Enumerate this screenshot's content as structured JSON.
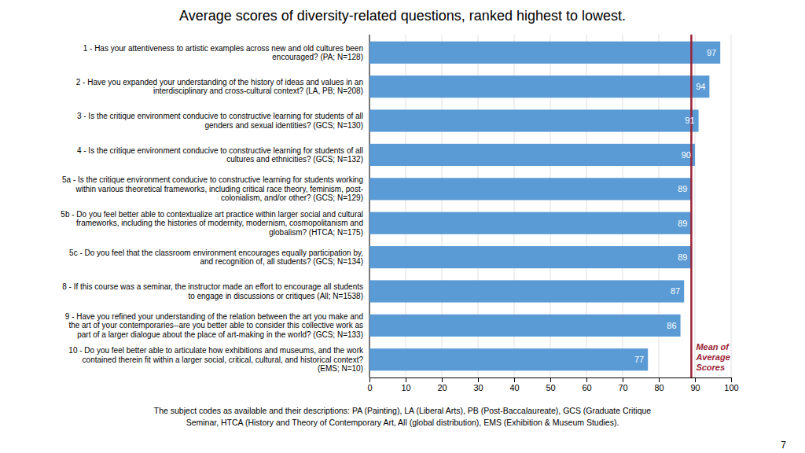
{
  "chart_data": {
    "type": "bar",
    "orientation": "horizontal",
    "title": "Average scores of diversity-related questions, ranked highest  to lowest.",
    "categories": [
      "1 - Has your attentiveness to artistic examples across new and old cultures been\nencouraged? (PA; N=128)",
      "2 - Have you expanded your understanding of the history of ideas and values in an\ninterdisciplinary and cross-cultural context? (LA, PB; N=208)",
      "3 - Is the critique environment conducive to constructive learning for students of all\ngenders and sexual identities? (GCS; N=130)",
      "4 - Is the critique environment conducive to constructive learning for students of all\ncultures and ethnicities? (GCS; N=132)",
      "5a - Is the critique environment conducive to constructive learning for students working\nwithin various theoretical frameworks, including critical race theory, feminism, post-\ncolonialism, and/or other? (GCS; N=129)",
      "5b - Do you feel better able to contextualize art practice within larger social and cultural\nframeworks, including the histories of modernity, modernism, cosmopolitanism and\nglobalism? (HTCA; N=175)",
      "5c - Do you feel that the classroom environment encourages equally participation by,\nand recognition of, all students? (GCS; N=134)",
      "8 - If this course was a seminar, the instructor made an effort to encourage all students\nto engage in discussions or critiques (All; N=1538)",
      "9 - Have you refined your understanding of the relation between the art you make and\nthe art of your contemporaries--are you better able to consider this collective work as\npart of a larger dialogue about the place of art-making in the world? (GCS; N=133)",
      "10 - Do you feel better able to articulate how exhibitions and museums, and the work\ncontained therein fit within a larger social, critical, cultural, and historical context?\n(EMS; N=10)"
    ],
    "values": [
      97,
      94,
      91,
      90,
      89,
      89,
      89,
      87,
      86,
      77
    ],
    "color": "#5b9bd5",
    "data_labels": true,
    "xlim": [
      0,
      100
    ],
    "xticks": [
      0,
      10,
      20,
      30,
      40,
      50,
      60,
      70,
      80,
      90,
      100
    ],
    "grid": true,
    "mean_line": {
      "value": 89,
      "label": "Mean of\nAverage\nScores",
      "color": "#9b2335"
    },
    "footnotes": [
      "The subject codes as available and their descriptions: PA (Painting), LA (Liberal Arts), PB (Post-Baccalaureate), GCS (Graduate Critique",
      "Seminar, HTCA (History and Theory of Contemporary Art, All (global distribution), EMS (Exhibition & Museum Studies)."
    ],
    "page_number": "7"
  }
}
